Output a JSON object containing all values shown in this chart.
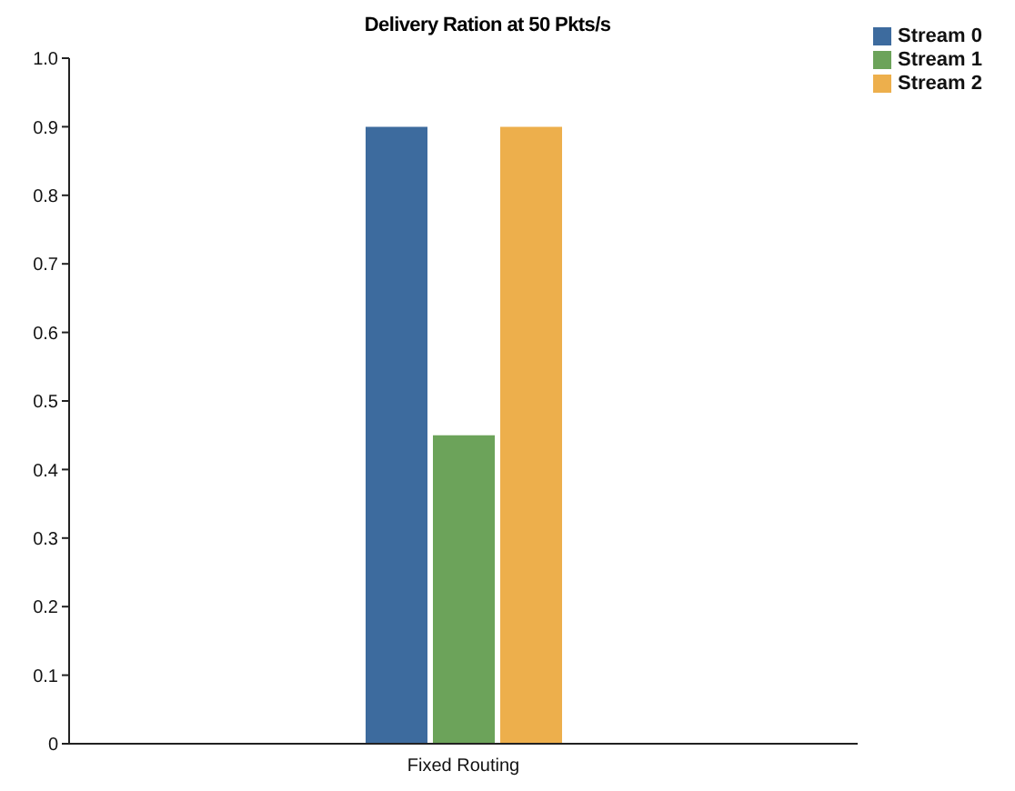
{
  "chart_data": {
    "type": "bar",
    "title": "Delivery Ration at 50 Pkts/s",
    "categories": [
      "Fixed Routing"
    ],
    "series": [
      {
        "name": "Stream 0",
        "color": "#3d6b9e",
        "values": [
          0.9
        ]
      },
      {
        "name": "Stream 1",
        "color": "#6ca35a",
        "values": [
          0.45
        ]
      },
      {
        "name": "Stream 2",
        "color": "#edaf4c",
        "values": [
          0.9
        ]
      }
    ],
    "ylim": [
      0,
      1
    ],
    "yticks": [
      0,
      0.1,
      0.2,
      0.3,
      0.4,
      0.5,
      0.6,
      0.7,
      0.8,
      0.9,
      {
        "value": 1,
        "label": "1.0"
      }
    ],
    "grid": false,
    "legend": "top right"
  }
}
